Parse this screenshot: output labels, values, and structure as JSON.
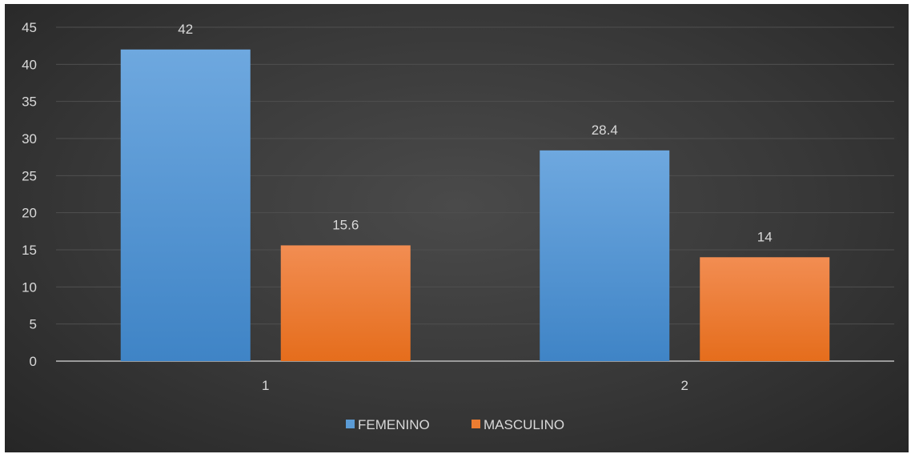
{
  "chart_data": {
    "type": "bar",
    "categories": [
      "1",
      "2"
    ],
    "series": [
      {
        "name": "FEMENINO",
        "values": [
          42,
          28.4
        ],
        "color": "#5b9bd5"
      },
      {
        "name": "MASCULINO",
        "values": [
          15.6,
          14
        ],
        "color": "#ed7d31"
      }
    ],
    "ylim": [
      0,
      45
    ],
    "yticks": [
      "0",
      "5",
      "10",
      "15",
      "20",
      "25",
      "30",
      "35",
      "40",
      "45"
    ],
    "data_labels": [
      [
        "42",
        "28.4"
      ],
      [
        "15.6",
        "14"
      ]
    ],
    "grid": true,
    "legend": "bottom",
    "title": "",
    "xlabel": "",
    "ylabel": ""
  }
}
